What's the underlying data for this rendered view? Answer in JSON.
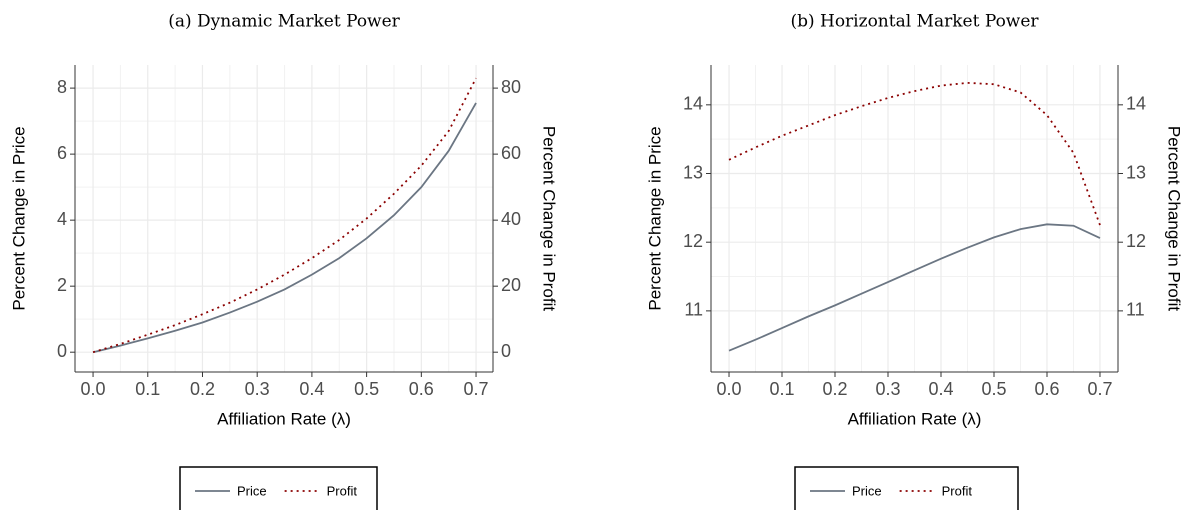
{
  "chart_data": [
    {
      "type": "line",
      "title": "(a) Dynamic Market Power",
      "xlabel": "Affiliation Rate  (λ)",
      "ylabel": "Percent Change in Price",
      "y2label": "Percent Change in Profit",
      "x": [
        0,
        0.05,
        0.1,
        0.15,
        0.2,
        0.25,
        0.3,
        0.35,
        0.4,
        0.45,
        0.5,
        0.55,
        0.6,
        0.65,
        0.7
      ],
      "series": [
        {
          "name": "Price",
          "color": "#6b7683",
          "dash": "solid",
          "values": [
            0,
            0.2,
            0.42,
            0.65,
            0.9,
            1.2,
            1.53,
            1.9,
            2.35,
            2.85,
            3.45,
            4.15,
            5.0,
            6.1,
            7.55
          ]
        },
        {
          "name": "Profit",
          "color": "#8b0000",
          "dash": "dotted",
          "axis": "y2",
          "values": [
            0,
            2.5,
            5.3,
            8.2,
            11.5,
            15,
            19,
            23.5,
            28.5,
            34,
            40.5,
            48,
            56.5,
            67,
            83
          ]
        }
      ],
      "xlim": [
        -0.033,
        0.731
      ],
      "xticks": [
        {
          "value": 0,
          "label": "0.0"
        },
        0.1,
        0.2,
        0.3,
        0.4,
        0.5,
        0.6,
        0.7
      ],
      "ylim": [
        -0.6,
        8.7
      ],
      "yticks": [
        0,
        2,
        4,
        6,
        8
      ],
      "y2lim": [
        -6,
        87
      ],
      "y2ticks": [
        0,
        20,
        40,
        60,
        80
      ],
      "grid": true
    },
    {
      "type": "line",
      "title": "(b) Horizontal Market Power",
      "xlabel": "Affiliation Rate  (λ)",
      "ylabel": "Percent Change in Price",
      "y2label": "Percent Change in Profit",
      "x": [
        0,
        0.05,
        0.1,
        0.15,
        0.2,
        0.25,
        0.3,
        0.35,
        0.4,
        0.45,
        0.5,
        0.55,
        0.6,
        0.65,
        0.7
      ],
      "series": [
        {
          "name": "Price",
          "color": "#6b7683",
          "dash": "solid",
          "values": [
            10.42,
            10.58,
            10.75,
            10.92,
            11.08,
            11.25,
            11.42,
            11.59,
            11.76,
            11.92,
            12.07,
            12.19,
            12.26,
            12.24,
            12.06
          ]
        },
        {
          "name": "Profit",
          "color": "#8b0000",
          "dash": "dotted",
          "axis": "y2",
          "values": [
            13.2,
            13.38,
            13.55,
            13.7,
            13.85,
            13.98,
            14.1,
            14.2,
            14.28,
            14.32,
            14.3,
            14.18,
            13.85,
            13.3,
            12.25
          ]
        }
      ],
      "xlim": [
        -0.034,
        0.734
      ],
      "xticks": [
        {
          "value": 0,
          "label": "0.0"
        },
        0.1,
        0.2,
        0.3,
        0.4,
        0.5,
        0.6,
        0.7
      ],
      "ylim": [
        10.11,
        14.58
      ],
      "yticks": [
        11,
        12,
        13,
        14
      ],
      "y2lim": [
        10.11,
        14.58
      ],
      "y2ticks": [
        11,
        12,
        13,
        14
      ],
      "grid": true
    }
  ]
}
